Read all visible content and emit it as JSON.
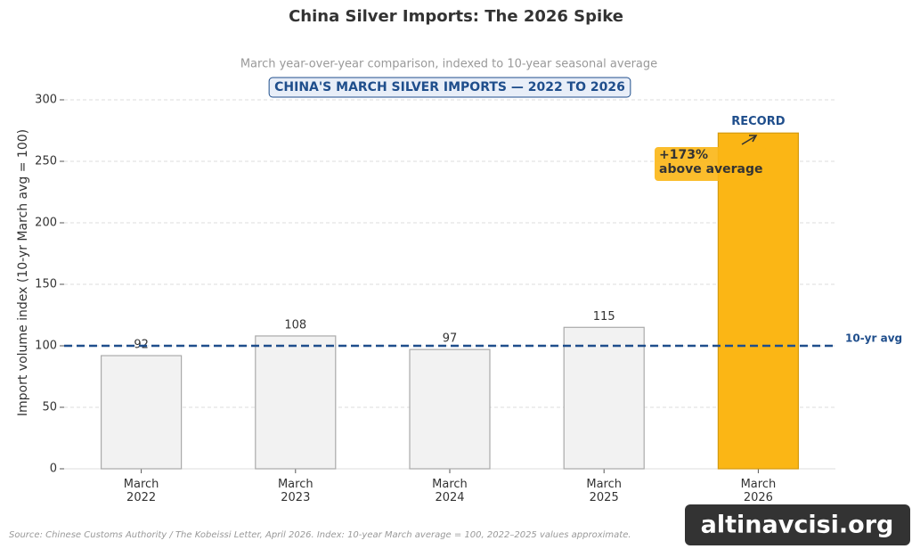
{
  "chart_data": {
    "type": "bar",
    "title": "China Silver Imports: The 2026 Spike",
    "subtitle": "March year-over-year comparison, indexed to 10-year seasonal average",
    "banner": "CHINA'S MARCH SILVER IMPORTS — 2022 TO 2026",
    "ylabel": "Import volume index  (10-yr March avg = 100)",
    "categories": [
      "March\n2022",
      "March\n2023",
      "March\n2024",
      "March\n2025",
      "March\n2026"
    ],
    "values": [
      92,
      108,
      97,
      115,
      273
    ],
    "value_labels": [
      "92",
      "108",
      "97",
      "115",
      null
    ],
    "colors": [
      "#f2f2f2",
      "#f2f2f2",
      "#f2f2f2",
      "#f2f2f2",
      "#fbb615"
    ],
    "ylim": [
      0,
      320
    ],
    "yticks": [
      0,
      50,
      100,
      150,
      200,
      250,
      300
    ],
    "grid": true,
    "reference_line": {
      "value": 100,
      "label": "10-yr avg",
      "color": "#1f4e8c"
    },
    "annotations": [
      {
        "text": "+173%\nabove average"
      },
      {
        "text": "RECORD"
      }
    ],
    "source": "Source: Chinese Customs Authority / The Kobeissi Letter, April 2026. Index: 10-year March average = 100, 2022–2025 values approximate.",
    "watermark": "altinavcisi.org"
  }
}
